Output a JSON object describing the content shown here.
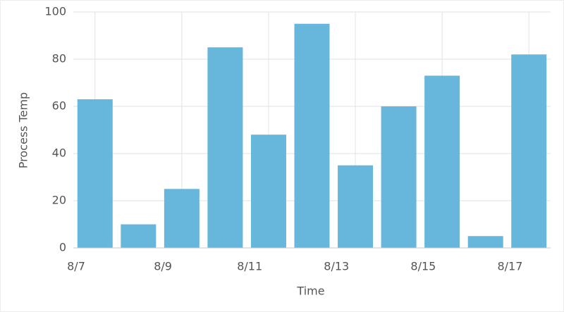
{
  "chart_data": {
    "type": "bar",
    "x_label": "Time",
    "y_label": "Process Temp",
    "categories": [
      "8/7",
      null,
      "8/9",
      null,
      "8/11",
      null,
      "8/13",
      null,
      "8/15",
      null,
      "8/17"
    ],
    "values": [
      63,
      10,
      25,
      85,
      48,
      95,
      35,
      60,
      73,
      5,
      82
    ],
    "color": "#67b6dc",
    "ylim": [
      0,
      100
    ],
    "yticks": [
      0,
      20,
      40,
      60,
      80,
      100
    ],
    "grid": true
  }
}
